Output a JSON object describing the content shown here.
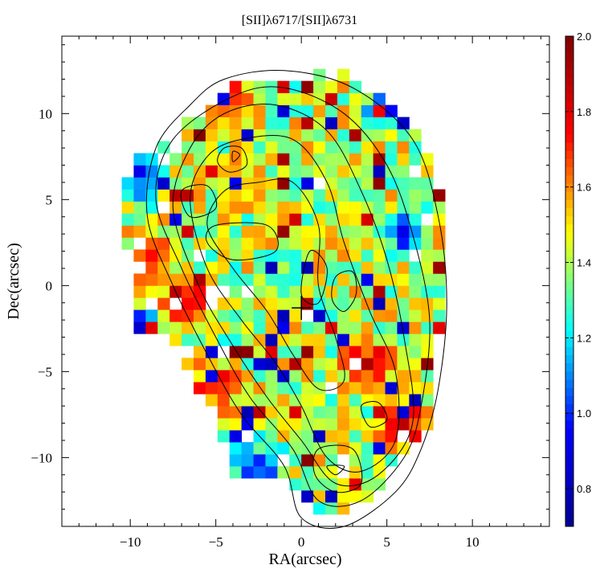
{
  "chart_data": {
    "type": "heatmap",
    "title": "[SII]λ6717/[SII]λ6731",
    "xlabel": "RA(arcsec)",
    "ylabel": "Dec(arcsec)",
    "xlim": [
      -14.0,
      14.5
    ],
    "ylim": [
      -14.0,
      14.5
    ],
    "x_ticks": [
      -10,
      -5,
      0,
      5,
      10
    ],
    "y_ticks": [
      10,
      5,
      0,
      -5,
      -10
    ],
    "x_tick_labels": [
      "−10",
      "−5",
      "0",
      "5",
      "10"
    ],
    "y_tick_labels": [
      "10",
      "5",
      "0",
      "−5",
      "−10"
    ],
    "pixel_size_arcsec": 0.7,
    "colorbar": {
      "min": 0.7,
      "max": 2.0,
      "ticks": [
        2.0,
        1.8,
        1.6,
        1.4,
        1.2,
        1.0,
        0.8
      ],
      "tick_labels": [
        "2.0",
        "1.8",
        "1.6",
        "1.4",
        "1.2",
        "1.0",
        "0.8"
      ],
      "colormap": [
        "#00008f",
        "#0000ff",
        "#00ffff",
        "#ffff00",
        "#ff0000",
        "#800000"
      ]
    },
    "map_outline": [
      [
        -10.0,
        7.0
      ],
      [
        -6.0,
        10.0
      ],
      [
        -4.0,
        12.0
      ],
      [
        -1.0,
        12.0
      ],
      [
        2.5,
        12.5
      ],
      [
        6.5,
        9.5
      ],
      [
        8.0,
        6.0
      ],
      [
        8.5,
        1.0
      ],
      [
        8.0,
        -3.0
      ],
      [
        8.0,
        -7.0
      ],
      [
        7.0,
        -9.0
      ],
      [
        5.0,
        -11.0
      ],
      [
        3.5,
        -13.0
      ],
      [
        1.0,
        -13.0
      ],
      [
        -1.0,
        -11.0
      ],
      [
        -3.5,
        -11.5
      ],
      [
        -5.0,
        -9.0
      ],
      [
        -6.0,
        -6.0
      ],
      [
        -8.0,
        -3.0
      ],
      [
        -10.0,
        -3.0
      ],
      [
        -10.0,
        1.0
      ],
      [
        -10.5,
        5.0
      ]
    ],
    "high_ratio_regions": [
      {
        "x": -4.0,
        "y": 11.0,
        "value": 1.8
      },
      {
        "x": -5.0,
        "y": -6.0,
        "value": 1.9
      },
      {
        "x": 4.0,
        "y": -4.5,
        "value": 1.9
      },
      {
        "x": 6.0,
        "y": -8.0,
        "value": 1.9
      },
      {
        "x": -6.5,
        "y": -1.0,
        "value": 1.9
      },
      {
        "x": -9.0,
        "y": 1.5,
        "value": 1.8
      }
    ],
    "low_ratio_regions": [
      {
        "x": 5.0,
        "y": 10.5,
        "value": 0.85
      },
      {
        "x": -9.5,
        "y": -2.5,
        "value": 0.85
      },
      {
        "x": -9.5,
        "y": 6.5,
        "value": 0.85
      },
      {
        "x": -2.5,
        "y": -10.5,
        "value": 0.85
      },
      {
        "x": 6.0,
        "y": 3.0,
        "value": 0.9
      }
    ],
    "contours": [
      [
        [
          -4.5,
          12.0
        ],
        [
          -1.0,
          12.5
        ],
        [
          3.0,
          11.5
        ],
        [
          6.5,
          8.5
        ],
        [
          8.0,
          4.0
        ],
        [
          8.5,
          -1.0
        ],
        [
          8.0,
          -6.0
        ],
        [
          7.0,
          -9.5
        ],
        [
          5.5,
          -12.0
        ],
        [
          2.5,
          -14.0
        ],
        [
          0.0,
          -13.5
        ],
        [
          -1.0,
          -10.5
        ],
        [
          -3.5,
          -7.5
        ],
        [
          -5.5,
          -4.0
        ],
        [
          -7.5,
          0.0
        ],
        [
          -9.0,
          4.0
        ],
        [
          -8.5,
          8.0
        ],
        [
          -6.5,
          10.5
        ]
      ],
      [
        [
          -4.0,
          11.0
        ],
        [
          -1.0,
          11.5
        ],
        [
          2.5,
          10.0
        ],
        [
          5.0,
          7.0
        ],
        [
          6.5,
          3.0
        ],
        [
          7.5,
          -2.0
        ],
        [
          7.0,
          -7.0
        ],
        [
          6.0,
          -10.0
        ],
        [
          3.5,
          -12.5
        ],
        [
          1.0,
          -12.5
        ],
        [
          -0.5,
          -9.5
        ],
        [
          -3.0,
          -6.5
        ],
        [
          -5.0,
          -3.0
        ],
        [
          -7.0,
          1.0
        ],
        [
          -8.5,
          5.0
        ],
        [
          -7.5,
          8.5
        ]
      ],
      [
        [
          -4.5,
          10.0
        ],
        [
          -1.5,
          10.5
        ],
        [
          1.5,
          9.0
        ],
        [
          3.5,
          5.5
        ],
        [
          5.0,
          1.5
        ],
        [
          6.0,
          -3.0
        ],
        [
          6.5,
          -8.0
        ],
        [
          4.5,
          -11.0
        ],
        [
          2.0,
          -11.5
        ],
        [
          0.0,
          -9.0
        ],
        [
          -2.0,
          -6.5
        ],
        [
          -4.0,
          -3.5
        ],
        [
          -6.0,
          0.0
        ],
        [
          -7.5,
          4.5
        ],
        [
          -6.5,
          8.0
        ]
      ],
      [
        [
          -3.5,
          8.5
        ],
        [
          -0.5,
          8.5
        ],
        [
          1.5,
          6.0
        ],
        [
          2.5,
          2.5
        ],
        [
          4.0,
          -1.5
        ],
        [
          5.5,
          -5.0
        ],
        [
          5.5,
          -9.0
        ],
        [
          3.5,
          -10.8
        ],
        [
          1.5,
          -10.0
        ],
        [
          0.0,
          -7.0
        ],
        [
          -1.5,
          -4.5
        ],
        [
          -3.5,
          -2.0
        ],
        [
          -5.5,
          1.0
        ],
        [
          -6.5,
          5.0
        ],
        [
          -5.5,
          7.5
        ]
      ],
      [
        [
          -2.5,
          6.0
        ],
        [
          -0.5,
          6.0
        ],
        [
          1.0,
          3.5
        ],
        [
          1.0,
          0.0
        ],
        [
          2.0,
          -3.0
        ],
        [
          2.5,
          -5.5
        ],
        [
          1.0,
          -6.0
        ],
        [
          -0.5,
          -4.0
        ],
        [
          -2.0,
          -1.5
        ],
        [
          -4.0,
          1.0
        ],
        [
          -5.5,
          3.5
        ],
        [
          -4.5,
          5.5
        ]
      ],
      [
        [
          -4.5,
          8.0
        ],
        [
          -3.5,
          8.0
        ],
        [
          -3.2,
          7.0
        ],
        [
          -4.2,
          6.6
        ],
        [
          -4.9,
          7.2
        ]
      ],
      [
        [
          -7.0,
          5.5
        ],
        [
          -5.5,
          5.8
        ],
        [
          -5.0,
          4.5
        ],
        [
          -6.5,
          4.0
        ]
      ],
      [
        [
          -5.0,
          3.5
        ],
        [
          -2.0,
          3.5
        ],
        [
          -1.5,
          2.0
        ],
        [
          -4.0,
          1.5
        ],
        [
          -5.5,
          2.5
        ]
      ],
      [
        [
          0.5,
          2.0
        ],
        [
          1.5,
          1.0
        ],
        [
          1.0,
          -1.0
        ],
        [
          0.0,
          -0.5
        ]
      ],
      [
        [
          2.0,
          0.5
        ],
        [
          3.0,
          0.8
        ],
        [
          3.2,
          -0.5
        ],
        [
          2.5,
          -1.5
        ],
        [
          1.8,
          -0.8
        ]
      ],
      [
        [
          3.5,
          -7.0
        ],
        [
          4.5,
          -6.8
        ],
        [
          5.0,
          -7.8
        ],
        [
          4.0,
          -8.2
        ]
      ],
      [
        [
          1.0,
          -9.5
        ],
        [
          3.0,
          -9.5
        ],
        [
          3.5,
          -11.5
        ],
        [
          2.0,
          -12.0
        ],
        [
          0.8,
          -11.0
        ]
      ],
      [
        [
          1.5,
          -10.5
        ],
        [
          2.5,
          -10.5
        ],
        [
          2.0,
          -11.0
        ]
      ],
      [
        [
          -4.0,
          7.8
        ],
        [
          -3.6,
          7.6
        ],
        [
          -4.0,
          7.2
        ]
      ]
    ],
    "nucleus_marker": {
      "x": 0.0,
      "y": -1.3,
      "symbol": "+"
    }
  }
}
